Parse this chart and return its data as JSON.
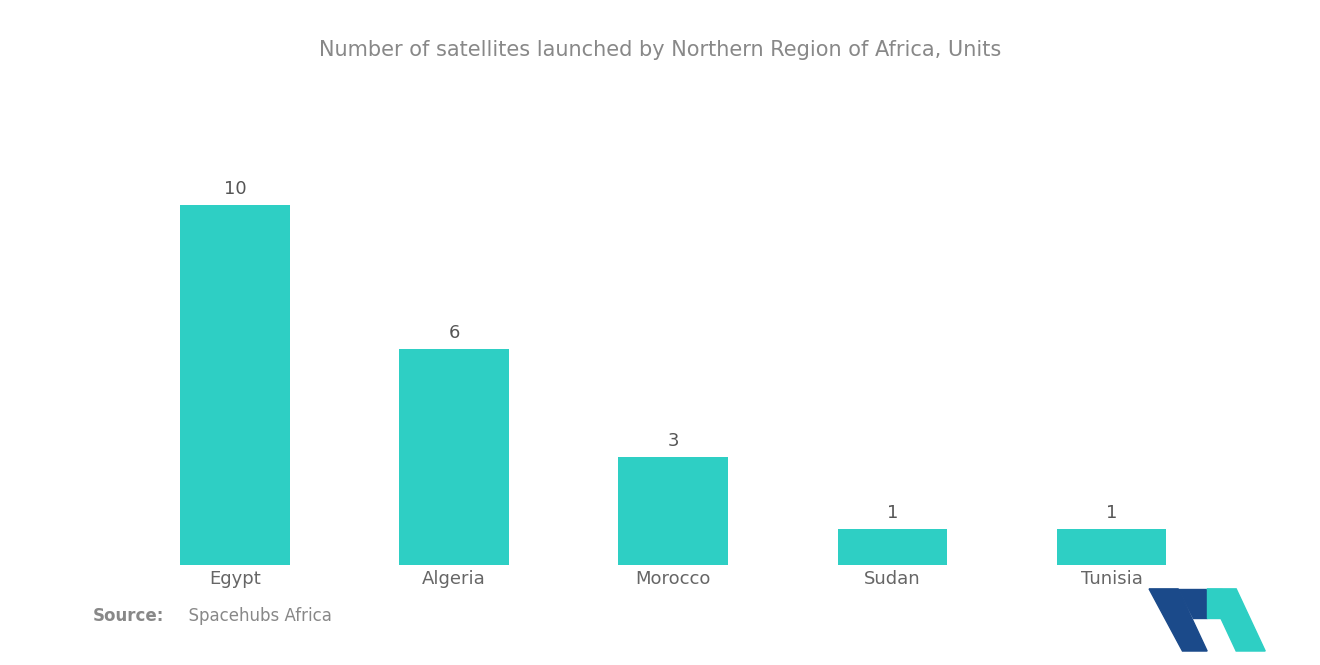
{
  "title": "Number of satellites launched by Northern Region of Africa, Units",
  "categories": [
    "Egypt",
    "Algeria",
    "Morocco",
    "Sudan",
    "Tunisia"
  ],
  "values": [
    10,
    6,
    3,
    1,
    1
  ],
  "bar_color": "#2ECFC4",
  "title_color": "#888888",
  "tick_color": "#666666",
  "value_color": "#555555",
  "source_bold": "Source:",
  "source_normal": "  Spacehubs Africa",
  "source_color": "#888888",
  "background_color": "#ffffff",
  "title_fontsize": 15,
  "tick_fontsize": 13,
  "value_fontsize": 13,
  "source_fontsize": 12,
  "bar_width": 0.5,
  "ylim": [
    0,
    12
  ],
  "logo_dark": "#1B4A8A",
  "logo_teal": "#2ECFC4"
}
